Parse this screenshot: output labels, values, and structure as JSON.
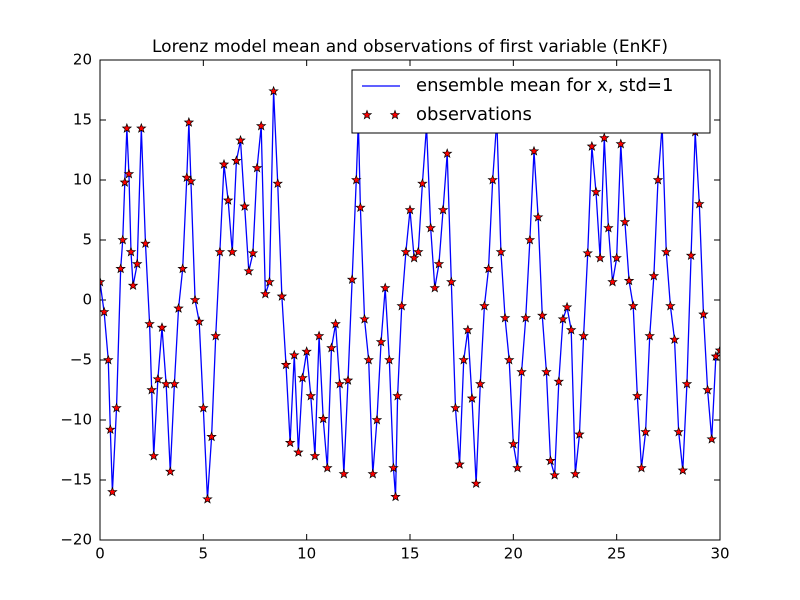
{
  "chart_data": {
    "type": "line",
    "title": "Lorenz model mean and observations of first variable (EnKF)",
    "x": [
      0,
      0.2,
      0.4,
      0.5,
      0.6,
      0.8,
      1.0,
      1.1,
      1.2,
      1.3,
      1.4,
      1.5,
      1.6,
      1.8,
      2.0,
      2.2,
      2.4,
      2.5,
      2.6,
      2.8,
      3.0,
      3.2,
      3.4,
      3.6,
      3.8,
      4.0,
      4.2,
      4.3,
      4.4,
      4.6,
      4.8,
      5.0,
      5.2,
      5.4,
      5.6,
      5.8,
      6.0,
      6.2,
      6.4,
      6.6,
      6.8,
      7.0,
      7.2,
      7.4,
      7.6,
      7.8,
      8.0,
      8.2,
      8.4,
      8.6,
      8.8,
      9.0,
      9.2,
      9.4,
      9.6,
      9.8,
      10.0,
      10.2,
      10.4,
      10.6,
      10.8,
      11.0,
      11.2,
      11.4,
      11.6,
      11.8,
      12.0,
      12.2,
      12.4,
      12.5,
      12.6,
      12.8,
      13.0,
      13.2,
      13.4,
      13.6,
      13.8,
      14.0,
      14.2,
      14.3,
      14.4,
      14.6,
      14.8,
      15.0,
      15.2,
      15.4,
      15.6,
      15.8,
      16.0,
      16.2,
      16.4,
      16.6,
      16.8,
      17.0,
      17.2,
      17.4,
      17.6,
      17.8,
      18.0,
      18.2,
      18.4,
      18.6,
      18.8,
      19.0,
      19.2,
      19.4,
      19.6,
      19.8,
      20.0,
      20.2,
      20.4,
      20.6,
      20.8,
      21.0,
      21.2,
      21.4,
      21.6,
      21.8,
      22.0,
      22.2,
      22.4,
      22.6,
      22.8,
      23.0,
      23.2,
      23.4,
      23.6,
      23.8,
      24.0,
      24.2,
      24.4,
      24.6,
      24.8,
      25.0,
      25.2,
      25.4,
      25.6,
      25.8,
      26.0,
      26.2,
      26.4,
      26.6,
      26.8,
      27.0,
      27.2,
      27.4,
      27.6,
      27.8,
      28.0,
      28.2,
      28.4,
      28.6,
      28.8,
      29.0,
      29.2,
      29.4,
      29.6,
      29.8,
      30.0
    ],
    "series": [
      {
        "name": "ensemble mean for x, std=1",
        "color": "#0000ff",
        "mark": "line",
        "values": [
          1.5,
          -1,
          -5,
          -10.8,
          -16,
          -9,
          2.6,
          5,
          9.8,
          14.3,
          10.5,
          4,
          1.2,
          3,
          14.3,
          4.7,
          -2,
          -7.5,
          -13,
          -6.6,
          -2.3,
          -7,
          -14.3,
          -7,
          -0.7,
          2.6,
          10.2,
          14.8,
          9.9,
          0,
          -1.8,
          -9,
          -16.6,
          -11.4,
          -3,
          4,
          11.3,
          8.3,
          4,
          11.6,
          13.3,
          7.8,
          2.4,
          3.9,
          11,
          14.5,
          0.5,
          1.5,
          17.4,
          9.7,
          0.3,
          -5.4,
          -11.9,
          -4.6,
          -12.7,
          -6.5,
          -4.3,
          -8,
          -13,
          -3,
          -9.9,
          -14,
          -4,
          -2,
          -7,
          -14.5,
          -6.7,
          1.7,
          10,
          14.9,
          7.7,
          -1.6,
          -5,
          -14.5,
          -10,
          -3.5,
          1,
          -5,
          -14,
          -16.4,
          -8,
          -0.5,
          4,
          7.5,
          3.5,
          4,
          9.7,
          14.5,
          6,
          1,
          3,
          7.5,
          12.2,
          1.5,
          -9,
          -13.7,
          -5,
          -2.5,
          -8.2,
          -15.3,
          -7,
          -0.5,
          2.6,
          10,
          15,
          4,
          -1.5,
          -5,
          -12,
          -14,
          -6,
          -1.5,
          5,
          12.4,
          6.9,
          -1.3,
          -6,
          -13.4,
          -14.6,
          -6.8,
          -1.6,
          -0.6,
          -2.5,
          -14.5,
          -11.2,
          -3,
          3.9,
          12.8,
          9,
          3.5,
          13.5,
          6,
          1.5,
          3.5,
          13,
          6.5,
          1.6,
          -0.5,
          -8,
          -14,
          -11,
          -3,
          2,
          10,
          14.5,
          4,
          -0.5,
          -3.3,
          -11,
          -14.2,
          -7,
          3.7,
          14,
          8,
          -1.2,
          -7.5,
          -11.6,
          -4.7,
          -4.2
        ]
      },
      {
        "name": "observations",
        "color": "#ff0000",
        "mark": "star",
        "values": [
          1.5,
          -1,
          -5,
          -10.8,
          -16,
          -9,
          2.6,
          5,
          9.8,
          14.3,
          10.5,
          4,
          1.2,
          3,
          14.3,
          4.7,
          -2,
          -7.5,
          -13,
          -6.6,
          -2.3,
          -7,
          -14.3,
          -7,
          -0.7,
          2.6,
          10.2,
          14.8,
          9.9,
          0,
          -1.8,
          -9,
          -16.6,
          -11.4,
          -3,
          4,
          11.3,
          8.3,
          4,
          11.6,
          13.3,
          7.8,
          2.4,
          3.9,
          11,
          14.5,
          0.5,
          1.5,
          17.4,
          9.7,
          0.3,
          -5.4,
          -11.9,
          -4.6,
          -12.7,
          -6.5,
          -4.3,
          -8,
          -13,
          -3,
          -9.9,
          -14,
          -4,
          -2,
          -7,
          -14.5,
          -6.7,
          1.7,
          10,
          14.9,
          7.7,
          -1.6,
          -5,
          -14.5,
          -10,
          -3.5,
          1,
          -5,
          -14,
          -16.4,
          -8,
          -0.5,
          4,
          7.5,
          3.5,
          4,
          9.7,
          14.5,
          6,
          1,
          3,
          7.5,
          12.2,
          1.5,
          -9,
          -13.7,
          -5,
          -2.5,
          -8.2,
          -15.3,
          -7,
          -0.5,
          2.6,
          10,
          15,
          4,
          -1.5,
          -5,
          -12,
          -14,
          -6,
          -1.5,
          5,
          12.4,
          6.9,
          -1.3,
          -6,
          -13.4,
          -14.6,
          -6.8,
          -1.6,
          -0.6,
          -2.5,
          -14.5,
          -11.2,
          -3,
          3.9,
          12.8,
          9,
          3.5,
          13.5,
          6,
          1.5,
          3.5,
          13,
          6.5,
          1.6,
          -0.5,
          -8,
          -14,
          -11,
          -3,
          2,
          10,
          14.5,
          4,
          -0.5,
          -3.3,
          -11,
          -14.2,
          -7,
          3.7,
          14,
          8,
          -1.2,
          -7.5,
          -11.6,
          -4.7,
          -4.2
        ]
      }
    ],
    "xlim": [
      0,
      30
    ],
    "xticks": [
      0,
      5,
      10,
      15,
      20,
      25,
      30
    ],
    "ylim": [
      -20,
      20
    ],
    "yticks": [
      {
        "value": -20,
        "label": "−20"
      },
      {
        "value": -15,
        "label": "−15"
      },
      {
        "value": -10,
        "label": "−10"
      },
      {
        "value": -5,
        "label": "−5"
      },
      0,
      5,
      10,
      15,
      20
    ],
    "legend": "upper right"
  }
}
